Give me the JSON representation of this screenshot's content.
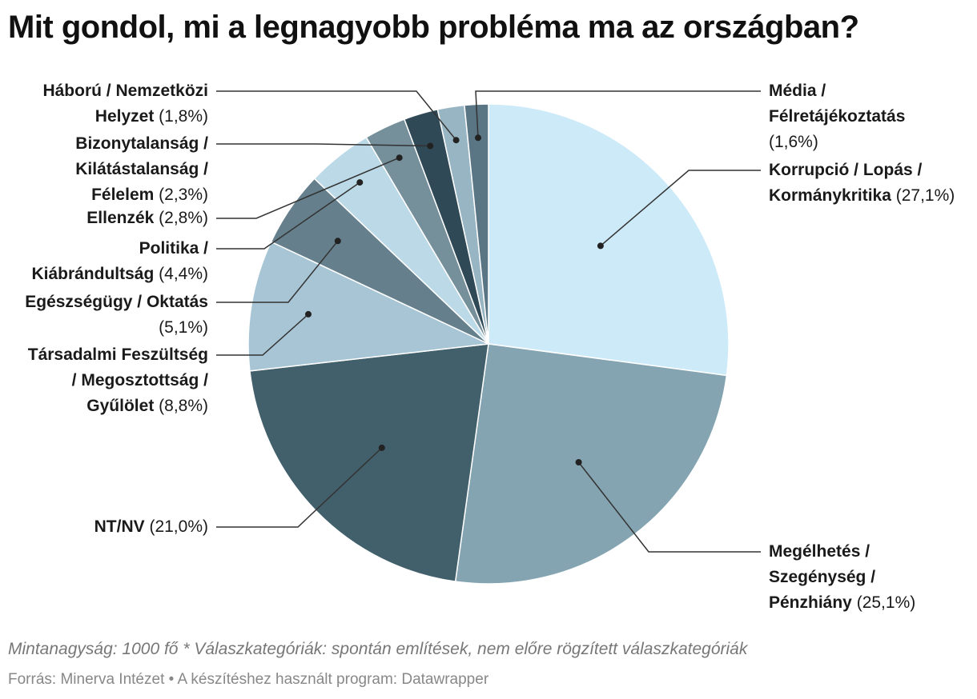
{
  "title": "Mit gondol, mi a legnagyobb probléma ma az országban?",
  "chart_data": {
    "type": "pie",
    "title": "Mit gondol, mi a legnagyobb probléma ma az országban?",
    "unit": "%",
    "slices": [
      {
        "label": "Korrupció / Lopás / Kormánykritika",
        "value": 27.1,
        "value_text": "(27,1%)",
        "label_lines": [
          "Korrupció / Lopás /",
          "Kormánykritika"
        ],
        "color": "#cdeaf8"
      },
      {
        "label": "Megélhetés / Szegénység / Pénzhiány",
        "value": 25.1,
        "value_text": "(25,1%)",
        "label_lines": [
          "Megélhetés /",
          "Szegénység /",
          "Pénzhiány"
        ],
        "color": "#84a4b1"
      },
      {
        "label": "NT/NV",
        "value": 21.0,
        "value_text": "(21,0%)",
        "label_lines": [
          "NT/NV"
        ],
        "color": "#42606c"
      },
      {
        "label": "Társadalmi Feszültség / Megosztottság / Gyűlölet",
        "value": 8.8,
        "value_text": "(8,8%)",
        "label_lines": [
          "Társadalmi Feszültség",
          "/ Megosztottság /",
          "Gyűlölet"
        ],
        "color": "#a7c5d5"
      },
      {
        "label": "Egészségügy / Oktatás",
        "value": 5.1,
        "value_text": "(5,1%)",
        "label_lines": [
          "Egészségügy / Oktatás"
        ],
        "color": "#657f8c"
      },
      {
        "label": "Politika / Kiábrándultság",
        "value": 4.4,
        "value_text": "(4,4%)",
        "label_lines": [
          "Politika /",
          "Kiábrándultság"
        ],
        "color": "#bcd9e7"
      },
      {
        "label": "Ellenzék",
        "value": 2.8,
        "value_text": "(2,8%)",
        "label_lines": [
          "Ellenzék"
        ],
        "color": "#758f9b"
      },
      {
        "label": "Bizonytalanság / Kilátástalanság / Félelem",
        "value": 2.3,
        "value_text": "(2,3%)",
        "label_lines": [
          "Bizonytalanság /",
          "Kilátástalanság /",
          "Félelem"
        ],
        "color": "#2f4957"
      },
      {
        "label": "Háború / Nemzetközi Helyzet",
        "value": 1.8,
        "value_text": "(1,8%)",
        "label_lines": [
          "Háború / Nemzetközi",
          "Helyzet"
        ],
        "color": "#98b5c3"
      },
      {
        "label": "Média / Félretájékoztatás",
        "value": 1.6,
        "value_text": "(1,6%)",
        "label_lines": [
          "Média /",
          "Félretájékoztatás"
        ],
        "color": "#5a7684"
      }
    ]
  },
  "footer": {
    "note": "Mintanagyság: 1000 fő * Válaszkategóriák: spontán említések, nem előre rögzített válaszkategóriák",
    "source": "Forrás: Minerva Intézet • A készítéshez használt program: Datawrapper"
  }
}
